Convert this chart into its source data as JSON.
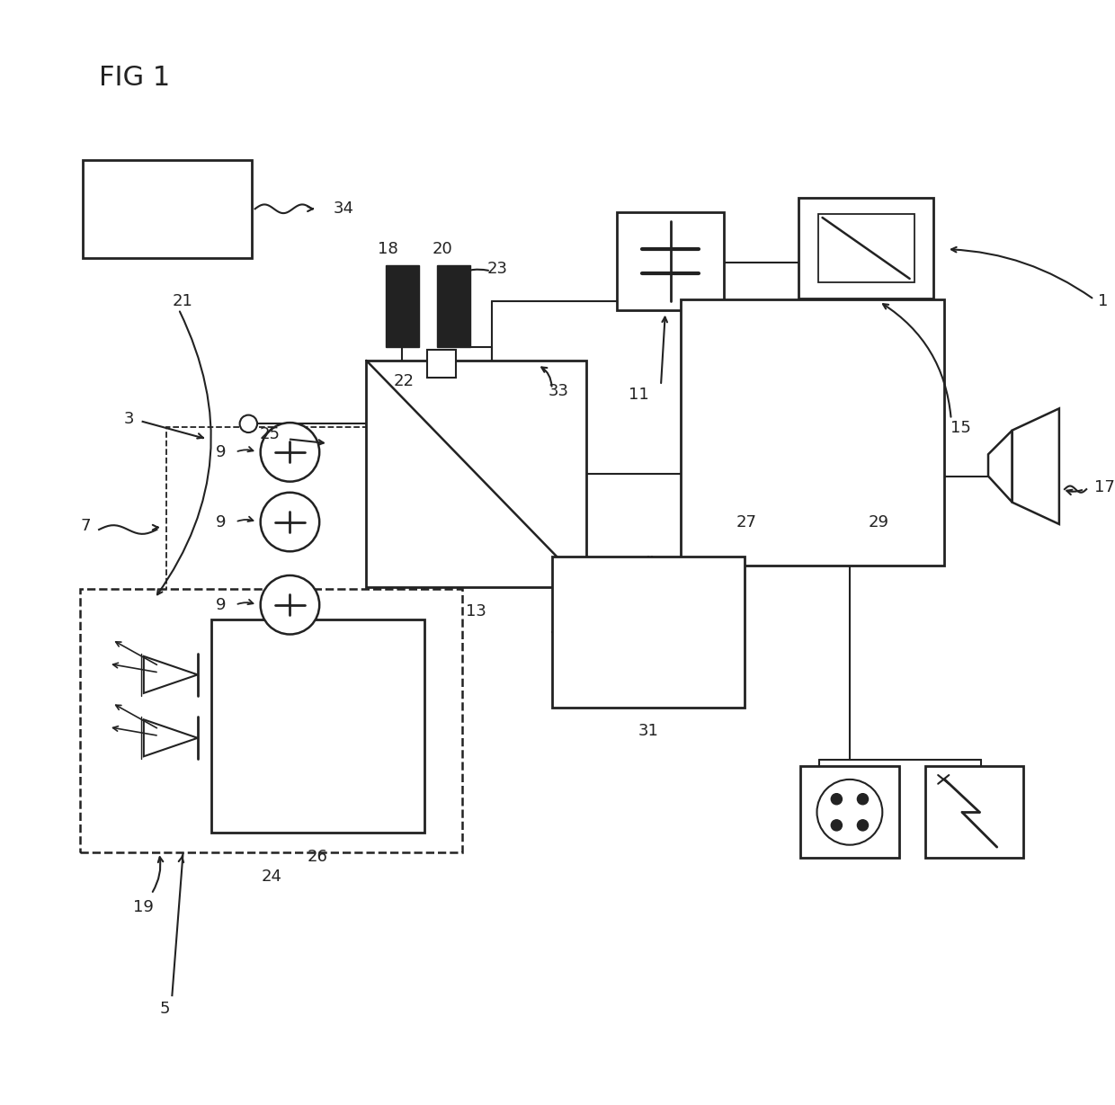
{
  "bg_color": "#ffffff",
  "line_color": "#222222",
  "figsize": [
    12.4,
    12.29
  ],
  "dpi": 100,
  "fig_label": "FIG 1"
}
